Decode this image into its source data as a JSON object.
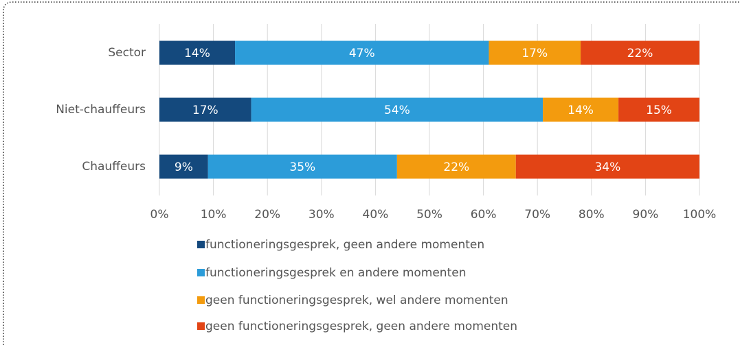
{
  "chart_data": {
    "type": "stacked_bar_horizontal",
    "categories": [
      "Sector",
      "Niet-chauffeurs",
      "Chauffeurs"
    ],
    "series": [
      {
        "name": "functioneringsgesprek, geen andere momenten",
        "color": "#14497d",
        "values": [
          14,
          17,
          9
        ],
        "value_labels": [
          "14%",
          "17%",
          "9%"
        ]
      },
      {
        "name": "functioneringsgesprek en andere momenten",
        "color": "#2c9cd9",
        "values": [
          47,
          54,
          35
        ],
        "value_labels": [
          "47%",
          "54%",
          "35%"
        ]
      },
      {
        "name": "geen functioneringsgesprek, wel andere momenten",
        "color": "#f39b0e",
        "values": [
          17,
          14,
          22
        ],
        "value_labels": [
          "17%",
          "14%",
          "22%"
        ]
      },
      {
        "name": "geen functioneringsgesprek, geen andere momenten",
        "color": "#e24415",
        "values": [
          22,
          15,
          34
        ],
        "value_labels": [
          "22%",
          "15%",
          "34%"
        ]
      }
    ],
    "xlim": [
      0,
      100
    ],
    "xticks": [
      {
        "value": 0,
        "label": "0%"
      },
      {
        "value": 10,
        "label": "10%"
      },
      {
        "value": 20,
        "label": "20%"
      },
      {
        "value": 30,
        "label": "30%"
      },
      {
        "value": 40,
        "label": "40%"
      },
      {
        "value": 50,
        "label": "50%"
      },
      {
        "value": 60,
        "label": "60%"
      },
      {
        "value": 70,
        "label": "70%"
      },
      {
        "value": 80,
        "label": "80%"
      },
      {
        "value": 90,
        "label": "90%"
      },
      {
        "value": 100,
        "label": "100%"
      }
    ],
    "grid": true,
    "legend": "bottom"
  }
}
